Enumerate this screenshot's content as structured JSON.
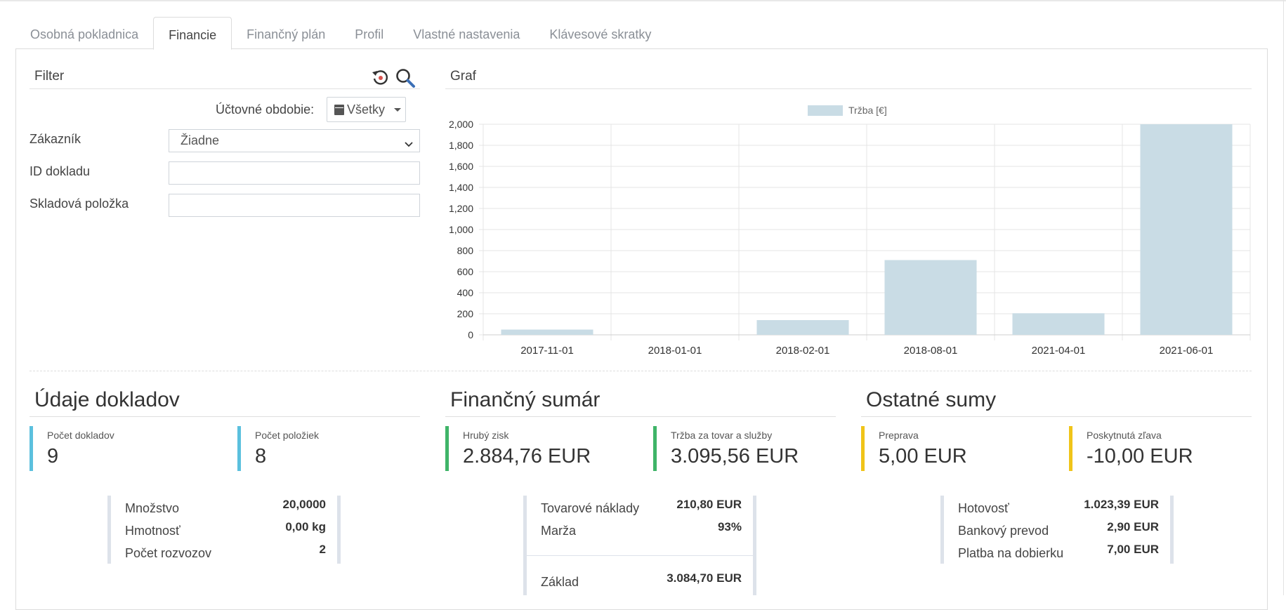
{
  "tabs": [
    {
      "label": "Osobná pokladnica"
    },
    {
      "label": "Financie"
    },
    {
      "label": "Finančný plán"
    },
    {
      "label": "Profil"
    },
    {
      "label": "Vlastné nastavenia"
    },
    {
      "label": "Klávesové skratky"
    }
  ],
  "active_tab": "Financie",
  "filter": {
    "title": "Filter",
    "period_label": "Účtovné obdobie:",
    "period_value": "Všetky",
    "customer_label": "Zákazník",
    "customer_value": "Žiadne",
    "doc_id_label": "ID dokladu",
    "doc_id_value": "",
    "item_label": "Skladová položka",
    "item_value": ""
  },
  "graph": {
    "title": "Graf"
  },
  "chart_data": {
    "type": "bar",
    "categories": [
      "2017-11-01",
      "2018-01-01",
      "2018-02-01",
      "2018-08-01",
      "2021-04-01",
      "2021-06-01"
    ],
    "series": [
      {
        "name": "Tržba [€]",
        "values": [
          50,
          0,
          140,
          710,
          205,
          2000
        ]
      }
    ],
    "ylim": [
      0,
      2000
    ],
    "yticks": [
      "0",
      "200",
      "400",
      "600",
      "800",
      "1,000",
      "1,200",
      "1,400",
      "1,600",
      "1,800",
      "2,000"
    ],
    "legend": "top-center",
    "grid": true,
    "color": "#c9dce5"
  },
  "docs": {
    "title": "Údaje dokladov",
    "count_label": "Počet dokladov",
    "count_value": "9",
    "items_label": "Počet položiek",
    "items_value": "8",
    "rows": [
      {
        "k": "Množstvo",
        "v": "20,0000"
      },
      {
        "k": "Hmotnosť",
        "v": "0,00 kg"
      },
      {
        "k": "Počet rozvozov",
        "v": "2"
      }
    ]
  },
  "summary": {
    "title": "Finančný sumár",
    "profit_label": "Hrubý zisk",
    "profit_value": "2.884,76 EUR",
    "revenue_label": "Tržba za tovar a služby",
    "revenue_value": "3.095,56 EUR",
    "rows": [
      {
        "k": "Tovarové náklady",
        "v": "210,80 EUR"
      },
      {
        "k": "Marža",
        "v": "93%"
      }
    ],
    "base_label": "Základ",
    "base_value": "3.084,70 EUR"
  },
  "other": {
    "title": "Ostatné sumy",
    "shipping_label": "Preprava",
    "shipping_value": "5,00 EUR",
    "discount_label": "Poskytnutá zľava",
    "discount_value": "-10,00 EUR",
    "rows": [
      {
        "k": "Hotovosť",
        "v": "1.023,39 EUR"
      },
      {
        "k": "Bankový prevod",
        "v": "2,90 EUR"
      },
      {
        "k": "Platba na dobierku",
        "v": "7,00 EUR"
      }
    ]
  },
  "colors": {
    "stat_blue": "#5bc0de",
    "stat_green": "#3fb468",
    "stat_yellow": "#f0c419",
    "bar": "#c9dce5"
  },
  "icons": [
    "reset-filter-icon",
    "search-icon",
    "calendar-icon",
    "caret-down-icon",
    "chevron-down-icon"
  ]
}
